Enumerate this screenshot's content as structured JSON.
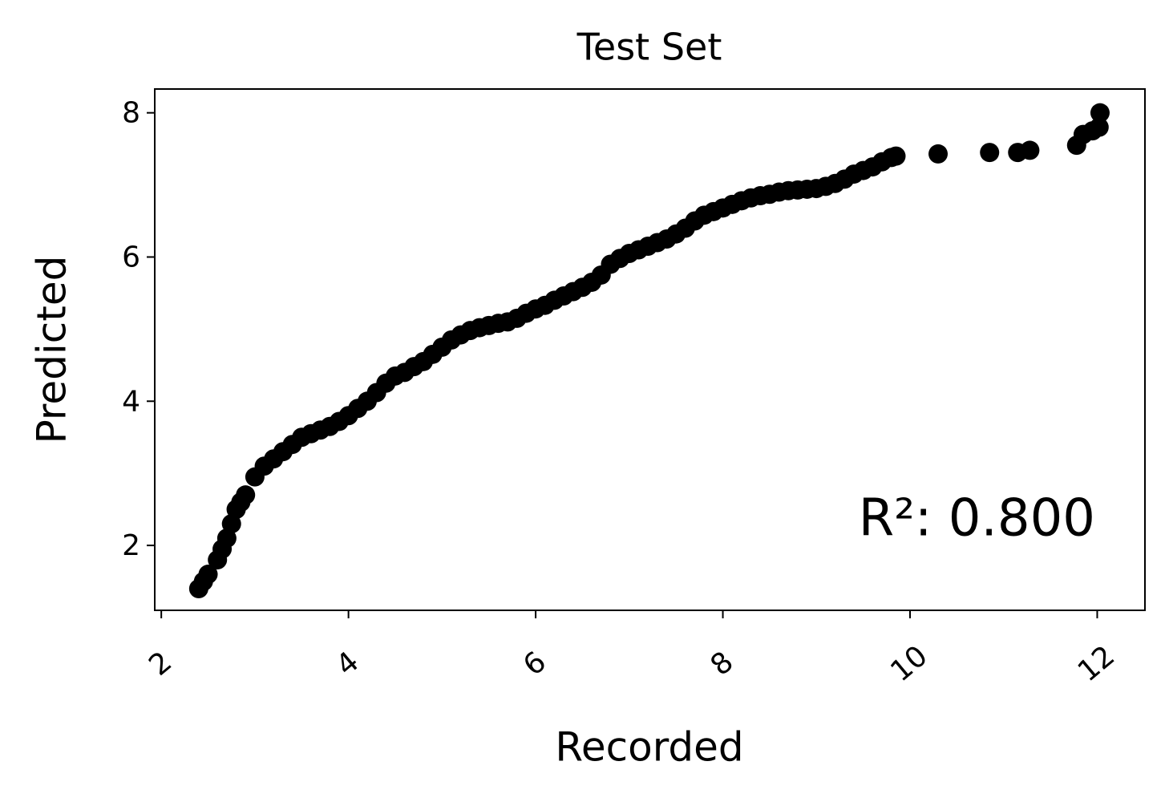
{
  "chart_data": {
    "type": "scatter",
    "title": "Test Set",
    "x_label": "Recorded",
    "y_label": "Predicted",
    "annotation": "R²: 0.800",
    "color": "#000000",
    "xlim": [
      1.93,
      12.51
    ],
    "ylim": [
      1.1,
      8.33
    ],
    "xticks": [
      2,
      4,
      6,
      8,
      10,
      12
    ],
    "yticks": [
      2,
      4,
      6,
      8
    ],
    "x": [
      2.4,
      2.45,
      2.5,
      2.6,
      2.65,
      2.7,
      2.75,
      2.8,
      2.85,
      2.9,
      3.0,
      3.1,
      3.2,
      3.3,
      3.4,
      3.5,
      3.6,
      3.7,
      3.8,
      3.9,
      4.0,
      4.1,
      4.2,
      4.3,
      4.4,
      4.5,
      4.6,
      4.7,
      4.8,
      4.9,
      5.0,
      5.1,
      5.2,
      5.3,
      5.4,
      5.5,
      5.6,
      5.7,
      5.8,
      5.9,
      6.0,
      6.1,
      6.2,
      6.3,
      6.4,
      6.5,
      6.6,
      6.7,
      6.8,
      6.9,
      7.0,
      7.1,
      7.2,
      7.3,
      7.4,
      7.5,
      7.6,
      7.7,
      7.8,
      7.9,
      8.0,
      8.1,
      8.2,
      8.3,
      8.4,
      8.5,
      8.6,
      8.7,
      8.8,
      8.9,
      9.0,
      9.1,
      9.2,
      9.3,
      9.4,
      9.5,
      9.6,
      9.7,
      9.8,
      9.85,
      10.3,
      10.85,
      11.15,
      11.28,
      11.78,
      11.85,
      11.95,
      12.02,
      12.03
    ],
    "y": [
      1.4,
      1.5,
      1.6,
      1.8,
      1.95,
      2.1,
      2.3,
      2.5,
      2.6,
      2.7,
      2.95,
      3.1,
      3.2,
      3.3,
      3.4,
      3.5,
      3.55,
      3.6,
      3.65,
      3.72,
      3.8,
      3.9,
      4.0,
      4.12,
      4.25,
      4.35,
      4.4,
      4.48,
      4.55,
      4.65,
      4.75,
      4.85,
      4.92,
      4.98,
      5.02,
      5.05,
      5.08,
      5.1,
      5.15,
      5.22,
      5.28,
      5.33,
      5.4,
      5.46,
      5.52,
      5.58,
      5.65,
      5.75,
      5.9,
      5.98,
      6.05,
      6.1,
      6.15,
      6.2,
      6.25,
      6.32,
      6.4,
      6.5,
      6.58,
      6.63,
      6.68,
      6.73,
      6.78,
      6.82,
      6.85,
      6.87,
      6.9,
      6.92,
      6.93,
      6.94,
      6.95,
      6.98,
      7.02,
      7.08,
      7.15,
      7.2,
      7.25,
      7.32,
      7.38,
      7.4,
      7.43,
      7.45,
      7.45,
      7.48,
      7.55,
      7.7,
      7.75,
      7.8,
      8.0
    ]
  }
}
